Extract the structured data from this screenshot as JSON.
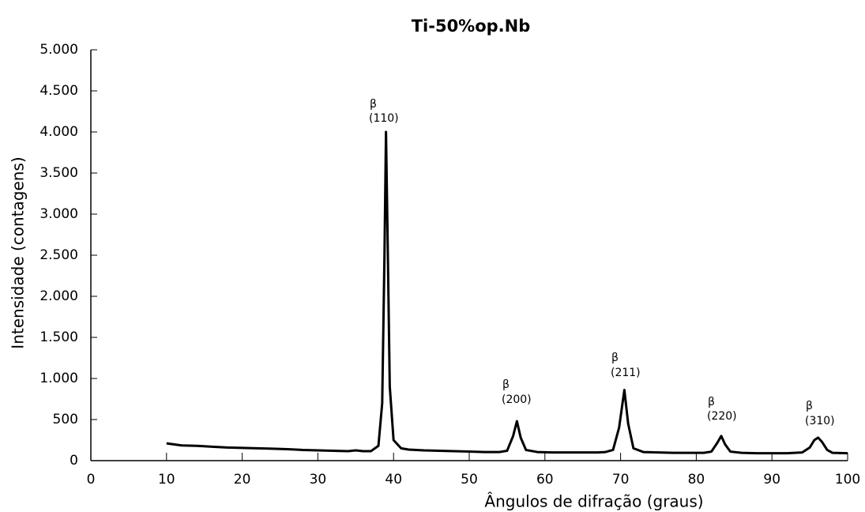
{
  "chart_data": {
    "type": "line",
    "title": "Ti-50%op.Nb",
    "x_label": "Ângulos de difração (graus)",
    "y_label": "Intensidade (contagens)",
    "annotations": [
      {
        "label": "β",
        "hkl": "(110)"
      },
      {
        "label": "β",
        "hkl": "(200)"
      },
      {
        "label": "β",
        "hkl": "(211)"
      },
      {
        "label": "β",
        "hkl": "(220)"
      },
      {
        "label": "β",
        "hkl": "(310)"
      }
    ],
    "x": [
      10,
      12,
      14,
      16,
      18,
      20,
      22,
      24,
      26,
      28,
      30,
      32,
      34,
      35,
      36,
      37,
      38,
      38.5,
      38.8,
      39,
      39.2,
      39.5,
      40,
      41,
      42,
      44,
      46,
      48,
      50,
      52,
      54,
      55,
      55.8,
      56.3,
      56.8,
      57.5,
      59,
      61,
      63,
      65,
      67,
      68,
      69,
      69.8,
      70.5,
      71,
      71.7,
      73,
      75,
      77,
      79,
      81,
      82,
      82.8,
      83.3,
      83.8,
      84.5,
      86,
      88,
      90,
      92,
      94,
      95,
      95.6,
      96.1,
      96.6,
      97.3,
      98,
      100
    ],
    "series": [
      {
        "name": "Ti-50%op.Nb",
        "color": "#000000",
        "values": [
          210,
          185,
          180,
          170,
          160,
          155,
          150,
          145,
          140,
          130,
          125,
          120,
          115,
          125,
          115,
          115,
          180,
          700,
          2500,
          4000,
          2800,
          900,
          250,
          150,
          135,
          125,
          120,
          115,
          110,
          105,
          105,
          120,
          300,
          480,
          280,
          130,
          105,
          100,
          100,
          100,
          100,
          105,
          130,
          400,
          860,
          450,
          150,
          105,
          100,
          95,
          95,
          95,
          110,
          220,
          300,
          200,
          110,
          95,
          90,
          90,
          90,
          100,
          160,
          250,
          280,
          230,
          130,
          95,
          90
        ]
      }
    ],
    "xlim": [
      0,
      100
    ],
    "xticks": [
      0,
      10,
      20,
      30,
      40,
      50,
      60,
      70,
      80,
      90,
      100
    ],
    "ylim": [
      0,
      5000
    ],
    "yticks": [
      0,
      500,
      {
        "value": 1000,
        "label": "1.000"
      },
      {
        "value": 1500,
        "label": "1.500"
      },
      {
        "value": 2000,
        "label": "2.000"
      },
      {
        "value": 2500,
        "label": "2.500"
      },
      {
        "value": 3000,
        "label": "3.000"
      },
      {
        "value": 3500,
        "label": "3.500"
      },
      {
        "value": 4000,
        "label": "4.000"
      },
      {
        "value": 4500,
        "label": "4.500"
      },
      {
        "value": 5000,
        "label": "5.000"
      }
    ],
    "grid": false
  }
}
